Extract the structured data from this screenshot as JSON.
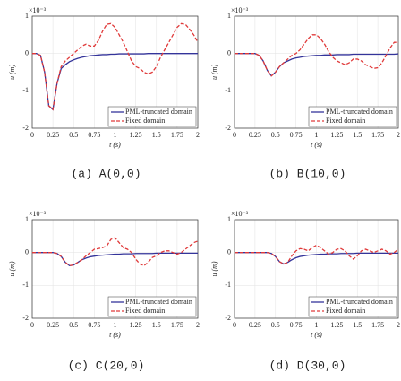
{
  "chart_data": [
    {
      "type": "line",
      "caption": "(a) A(0,0)",
      "xlabel": "t (s)",
      "ylabel": "u (m)",
      "y_multiplier": "×10⁻³",
      "xlim": [
        0,
        2
      ],
      "ylim": [
        -2,
        1
      ],
      "xticks": [
        0,
        0.25,
        0.5,
        0.75,
        1,
        1.25,
        1.5,
        1.75,
        2
      ],
      "yticks": [
        -2,
        -1,
        0,
        1
      ],
      "grid": true,
      "legend": "lower right",
      "x": [
        0,
        0.05,
        0.1,
        0.15,
        0.2,
        0.25,
        0.3,
        0.35,
        0.4,
        0.45,
        0.5,
        0.55,
        0.6,
        0.65,
        0.7,
        0.75,
        0.8,
        0.85,
        0.9,
        0.95,
        1,
        1.05,
        1.1,
        1.15,
        1.2,
        1.25,
        1.3,
        1.35,
        1.4,
        1.45,
        1.5,
        1.55,
        1.6,
        1.65,
        1.7,
        1.75,
        1.8,
        1.85,
        1.9,
        1.95,
        2
      ],
      "series": [
        {
          "name": "PML-truncated domain",
          "color": "#34349a",
          "style": "solid",
          "values": [
            0,
            0,
            -0.05,
            -0.5,
            -1.4,
            -1.5,
            -0.8,
            -0.4,
            -0.3,
            -0.22,
            -0.17,
            -0.13,
            -0.1,
            -0.08,
            -0.06,
            -0.05,
            -0.04,
            -0.03,
            -0.03,
            -0.02,
            -0.02,
            -0.01,
            -0.01,
            -0.01,
            -0.01,
            -0.01,
            -0.01,
            -0.01,
            0,
            0,
            0,
            0,
            0,
            0,
            0,
            0,
            0,
            0,
            0,
            0,
            0
          ]
        },
        {
          "name": "Fixed domain",
          "color": "#e03a3a",
          "style": "dashed",
          "values": [
            0,
            0,
            -0.05,
            -0.5,
            -1.4,
            -1.5,
            -0.8,
            -0.35,
            -0.2,
            -0.1,
            0,
            0.1,
            0.2,
            0.25,
            0.2,
            0.2,
            0.35,
            0.6,
            0.78,
            0.8,
            0.7,
            0.5,
            0.3,
            0.05,
            -0.2,
            -0.35,
            -0.4,
            -0.5,
            -0.55,
            -0.5,
            -0.35,
            -0.1,
            0.1,
            0.3,
            0.5,
            0.7,
            0.8,
            0.78,
            0.65,
            0.5,
            0.3
          ]
        }
      ]
    },
    {
      "type": "line",
      "caption": "(b) B(10,0)",
      "xlabel": "t (s)",
      "ylabel": "u (m)",
      "y_multiplier": "×10⁻³",
      "xlim": [
        0,
        2
      ],
      "ylim": [
        -2,
        1
      ],
      "xticks": [
        0,
        0.25,
        0.5,
        0.75,
        1,
        1.25,
        1.5,
        1.75,
        2
      ],
      "yticks": [
        -2,
        -1,
        0,
        1
      ],
      "grid": true,
      "legend": "lower right",
      "x": [
        0,
        0.05,
        0.1,
        0.15,
        0.2,
        0.25,
        0.3,
        0.35,
        0.4,
        0.45,
        0.5,
        0.55,
        0.6,
        0.65,
        0.7,
        0.75,
        0.8,
        0.85,
        0.9,
        0.95,
        1,
        1.05,
        1.1,
        1.15,
        1.2,
        1.25,
        1.3,
        1.35,
        1.4,
        1.45,
        1.5,
        1.55,
        1.6,
        1.65,
        1.7,
        1.75,
        1.8,
        1.85,
        1.9,
        1.95,
        2
      ],
      "series": [
        {
          "name": "PML-truncated domain",
          "color": "#34349a",
          "style": "solid",
          "values": [
            0,
            0,
            0,
            0,
            0,
            0,
            -0.05,
            -0.2,
            -0.45,
            -0.6,
            -0.5,
            -0.35,
            -0.25,
            -0.2,
            -0.15,
            -0.12,
            -0.1,
            -0.08,
            -0.07,
            -0.06,
            -0.05,
            -0.05,
            -0.04,
            -0.04,
            -0.04,
            -0.03,
            -0.03,
            -0.03,
            -0.03,
            -0.02,
            -0.02,
            -0.02,
            -0.02,
            -0.02,
            -0.02,
            -0.02,
            -0.02,
            -0.02,
            -0.02,
            -0.02,
            -0.01
          ]
        },
        {
          "name": "Fixed domain",
          "color": "#e03a3a",
          "style": "dashed",
          "values": [
            0,
            0,
            0,
            0,
            0,
            0,
            -0.05,
            -0.2,
            -0.45,
            -0.6,
            -0.5,
            -0.35,
            -0.25,
            -0.15,
            -0.05,
            0,
            0.1,
            0.25,
            0.4,
            0.5,
            0.5,
            0.4,
            0.25,
            0.05,
            -0.1,
            -0.2,
            -0.25,
            -0.3,
            -0.25,
            -0.15,
            -0.15,
            -0.2,
            -0.3,
            -0.35,
            -0.4,
            -0.38,
            -0.25,
            -0.05,
            0.15,
            0.3,
            0.3
          ]
        }
      ]
    },
    {
      "type": "line",
      "caption": "(c) C(20,0)",
      "xlabel": "t (s)",
      "ylabel": "u (m)",
      "y_multiplier": "×10⁻³",
      "xlim": [
        0,
        2
      ],
      "ylim": [
        -2,
        1
      ],
      "xticks": [
        0,
        0.25,
        0.5,
        0.75,
        1,
        1.25,
        1.5,
        1.75,
        2
      ],
      "yticks": [
        -2,
        -1,
        0,
        1
      ],
      "grid": true,
      "legend": "lower right",
      "x": [
        0,
        0.05,
        0.1,
        0.15,
        0.2,
        0.25,
        0.3,
        0.35,
        0.4,
        0.45,
        0.5,
        0.55,
        0.6,
        0.65,
        0.7,
        0.75,
        0.8,
        0.85,
        0.9,
        0.95,
        1,
        1.05,
        1.1,
        1.15,
        1.2,
        1.25,
        1.3,
        1.35,
        1.4,
        1.45,
        1.5,
        1.55,
        1.6,
        1.65,
        1.7,
        1.75,
        1.8,
        1.85,
        1.9,
        1.95,
        2
      ],
      "series": [
        {
          "name": "PML-truncated domain",
          "color": "#34349a",
          "style": "solid",
          "values": [
            0,
            0,
            0,
            0,
            0,
            0,
            -0.03,
            -0.12,
            -0.3,
            -0.4,
            -0.38,
            -0.3,
            -0.22,
            -0.17,
            -0.13,
            -0.11,
            -0.09,
            -0.08,
            -0.07,
            -0.06,
            -0.05,
            -0.05,
            -0.04,
            -0.04,
            -0.04,
            -0.03,
            -0.03,
            -0.03,
            -0.03,
            -0.03,
            -0.02,
            -0.02,
            -0.02,
            -0.02,
            -0.02,
            -0.02,
            -0.02,
            -0.02,
            -0.02,
            -0.02,
            -0.02
          ]
        },
        {
          "name": "Fixed domain",
          "color": "#e03a3a",
          "style": "dashed",
          "values": [
            0,
            0,
            0,
            0,
            0,
            0,
            -0.03,
            -0.12,
            -0.3,
            -0.4,
            -0.38,
            -0.3,
            -0.22,
            -0.1,
            0,
            0.1,
            0.12,
            0.15,
            0.2,
            0.4,
            0.45,
            0.3,
            0.15,
            0.1,
            0,
            -0.2,
            -0.35,
            -0.4,
            -0.3,
            -0.15,
            -0.1,
            0,
            0.05,
            0.05,
            0,
            -0.05,
            0,
            0.1,
            0.2,
            0.3,
            0.35
          ]
        }
      ]
    },
    {
      "type": "line",
      "caption": "(d) D(30,0)",
      "xlabel": "t (s)",
      "ylabel": "u (m)",
      "y_multiplier": "×10⁻³",
      "xlim": [
        0,
        2
      ],
      "ylim": [
        -2,
        1
      ],
      "xticks": [
        0,
        0.25,
        0.5,
        0.75,
        1,
        1.25,
        1.5,
        1.75,
        2
      ],
      "yticks": [
        -2,
        -1,
        0,
        1
      ],
      "grid": true,
      "legend": "lower right",
      "x": [
        0,
        0.05,
        0.1,
        0.15,
        0.2,
        0.25,
        0.3,
        0.35,
        0.4,
        0.45,
        0.5,
        0.55,
        0.6,
        0.65,
        0.7,
        0.75,
        0.8,
        0.85,
        0.9,
        0.95,
        1,
        1.05,
        1.1,
        1.15,
        1.2,
        1.25,
        1.3,
        1.35,
        1.4,
        1.45,
        1.5,
        1.55,
        1.6,
        1.65,
        1.7,
        1.75,
        1.8,
        1.85,
        1.9,
        1.95,
        2
      ],
      "series": [
        {
          "name": "PML-truncated domain",
          "color": "#34349a",
          "style": "solid",
          "values": [
            0,
            0,
            0,
            0,
            0,
            0,
            0,
            0,
            0,
            -0.03,
            -0.12,
            -0.28,
            -0.35,
            -0.3,
            -0.22,
            -0.16,
            -0.12,
            -0.1,
            -0.08,
            -0.07,
            -0.06,
            -0.05,
            -0.05,
            -0.04,
            -0.04,
            -0.04,
            -0.03,
            -0.03,
            -0.03,
            -0.03,
            -0.02,
            -0.02,
            -0.02,
            -0.02,
            -0.02,
            -0.02,
            -0.02,
            -0.02,
            -0.02,
            -0.02,
            -0.02
          ]
        },
        {
          "name": "Fixed domain",
          "color": "#e03a3a",
          "style": "dashed",
          "values": [
            0,
            0,
            0,
            0,
            0,
            0,
            0,
            0,
            0,
            -0.03,
            -0.12,
            -0.28,
            -0.35,
            -0.3,
            -0.1,
            0.05,
            0.12,
            0.1,
            0.05,
            0.15,
            0.22,
            0.15,
            0.05,
            -0.05,
            0,
            0.1,
            0.12,
            0.05,
            -0.1,
            -0.2,
            -0.1,
            0.05,
            0.1,
            0.05,
            0,
            0.05,
            0.1,
            0.05,
            -0.05,
            0,
            0.1
          ]
        }
      ]
    }
  ]
}
